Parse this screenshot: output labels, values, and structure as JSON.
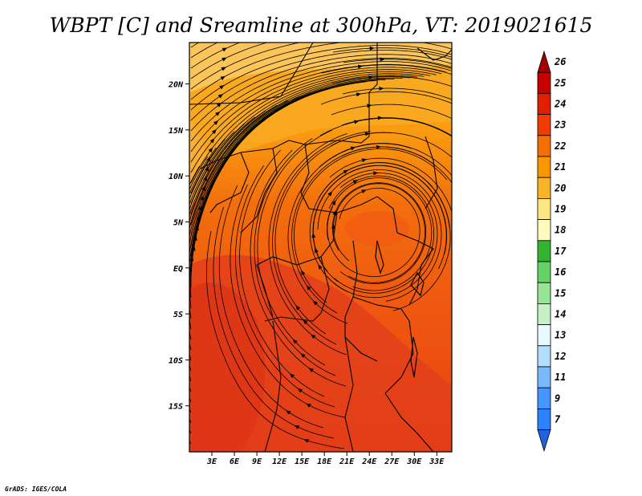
{
  "title": "WBPT [C] and Sreamline at 300hPa, VT: 2019021615",
  "credit": "GrADS: IGES/COLA",
  "map": {
    "lon_labels": [
      "3E",
      "6E",
      "9E",
      "12E",
      "15E",
      "18E",
      "21E",
      "24E",
      "27E",
      "30E",
      "33E"
    ],
    "lat_labels": [
      "20N",
      "15N",
      "10N",
      "5N",
      "EQ",
      "5S",
      "10S",
      "15S"
    ],
    "lon_range": [
      0,
      35
    ],
    "lat_range": [
      -20,
      24.5
    ]
  },
  "colorbar": {
    "labels": [
      "26",
      "25",
      "24",
      "23",
      "22",
      "21",
      "20",
      "19",
      "18",
      "17",
      "16",
      "15",
      "14",
      "13",
      "12",
      "11",
      "9",
      "7"
    ],
    "colors": [
      "#a50000",
      "#c80000",
      "#e11e00",
      "#f03c00",
      "#f56e00",
      "#fa9600",
      "#fab428",
      "#fde682",
      "#fffabe",
      "#32b432",
      "#64d264",
      "#96e696",
      "#c8f0c8",
      "#e6faff",
      "#b4dcff",
      "#78b9ff",
      "#4696ff",
      "#2d82ff",
      "#1e64dc"
    ]
  }
}
